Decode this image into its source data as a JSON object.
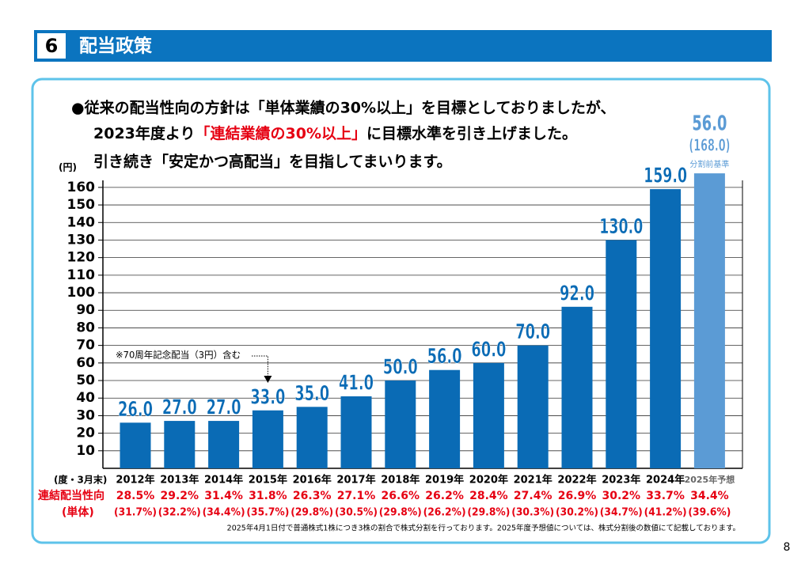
{
  "section_number": "6",
  "section_title": "配当政策",
  "intro": {
    "line1": "●従来の配当性向の方針は「単体業績の30%以上」を目標としておりましたが、",
    "line2_before": "2023年度より",
    "line2_red": "「連結業績の30%以上」",
    "line2_after": "に目標水準を引き上げました。",
    "line3": "引き続き「安定かつ高配当」を目指してまいります。"
  },
  "chart_data": {
    "type": "bar",
    "y_label": "(円)",
    "categories": [
      "2012年",
      "2013年",
      "2014年",
      "2015年",
      "2016年",
      "2017年",
      "2018年",
      "2019年",
      "2020年",
      "2021年",
      "2022年",
      "2023年",
      "2024年",
      "2025年予想"
    ],
    "values": [
      26,
      27,
      27,
      33,
      35,
      41,
      50,
      56,
      60,
      70,
      92,
      130,
      159,
      168
    ],
    "value_labels": [
      "26.0",
      "27.0",
      "27.0",
      "33.0",
      "35.0",
      "41.0",
      "50.0",
      "56.0",
      "60.0",
      "70.0",
      "92.0",
      "130.0",
      "159.0",
      "(168.0)"
    ],
    "colors": [
      "#0a6bb5",
      "#0a6bb5",
      "#0a6bb5",
      "#0a6bb5",
      "#0a6bb5",
      "#0a6bb5",
      "#0a6bb5",
      "#0a6bb5",
      "#0a6bb5",
      "#0a6bb5",
      "#0a6bb5",
      "#0a6bb5",
      "#0a6bb5",
      "#5b9bd5"
    ],
    "forecast_post_split_label": "56.0",
    "forecast_note": "分割前基準",
    "ylim": [
      0,
      164
    ],
    "yticks": [
      10,
      20,
      30,
      40,
      50,
      60,
      70,
      80,
      90,
      100,
      110,
      120,
      130,
      140,
      150,
      160
    ],
    "grid": true,
    "annotation": "※70周年記念配当（3円）含む"
  },
  "table": {
    "period_label": "(度・3月末)",
    "consolidated_label": "連結配当性向",
    "standalone_label": "(単体)",
    "consolidated": [
      "28.5%",
      "29.2%",
      "31.4%",
      "31.8%",
      "26.3%",
      "27.1%",
      "26.6%",
      "26.2%",
      "28.4%",
      "27.4%",
      "26.9%",
      "30.2%",
      "33.7%",
      "34.4%"
    ],
    "standalone": [
      "(31.7%)",
      "(32.2%)",
      "(34.4%)",
      "(35.7%)",
      "(29.8%)",
      "(30.5%)",
      "(29.8%)",
      "(26.2%)",
      "(29.8%)",
      "(30.3%)",
      "(30.2%)",
      "(34.7%)",
      "(41.2%)",
      "(39.6%)"
    ]
  },
  "footnote": "2025年4月1日付で普通株式1株につき3株の割合で株式分割を行っております。2025年度予想値については、株式分割後の数値にて記載しております。",
  "page_number": "8"
}
